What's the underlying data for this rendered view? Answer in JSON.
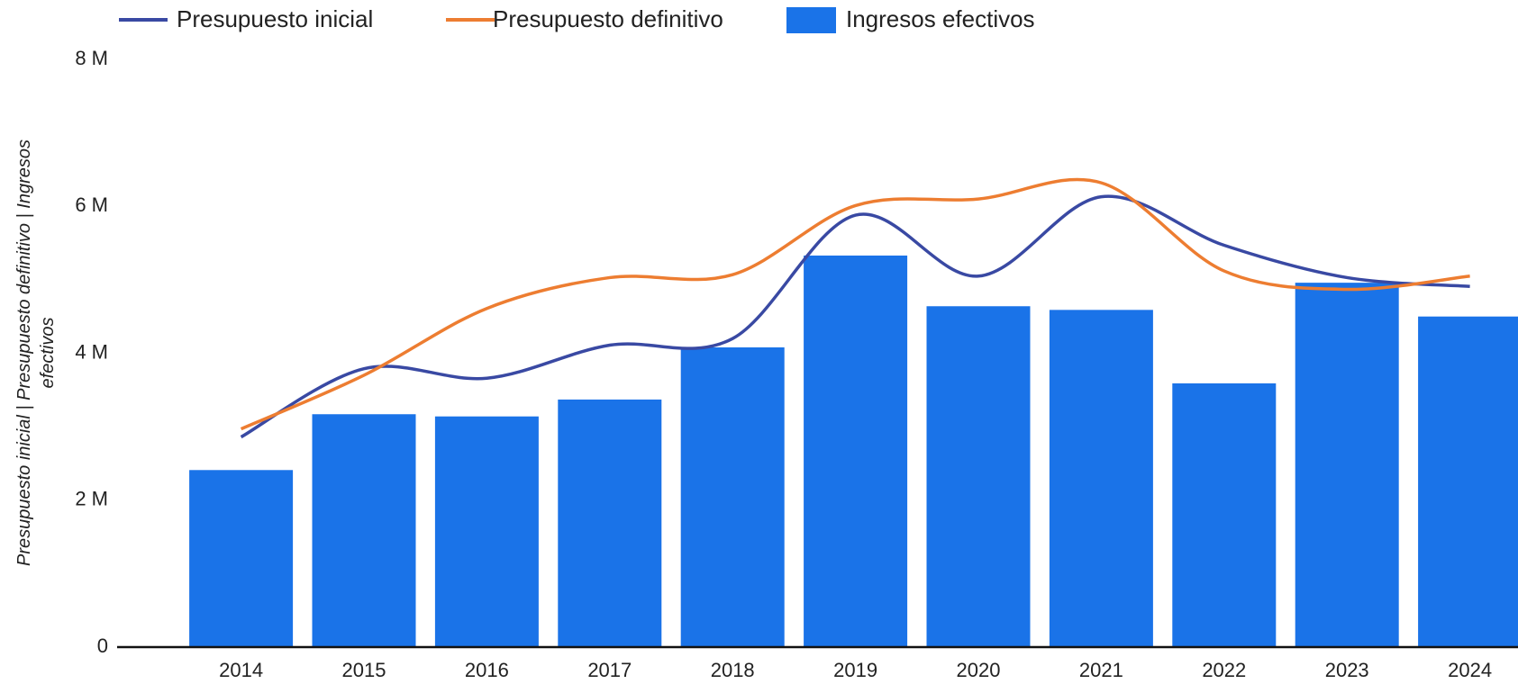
{
  "chart_data": {
    "type": "bar-line",
    "y_label": "Presupuesto inicial | Presupuesto definitivo | Ingresos efectivos",
    "categories": [
      "2014",
      "2015",
      "2016",
      "2017",
      "2018",
      "2019",
      "2020",
      "2021",
      "2022",
      "2023",
      "2024"
    ],
    "series": [
      {
        "name": "Presupuesto inicial",
        "type": "line",
        "color": "#3949a3",
        "values": [
          2860000,
          3790000,
          3660000,
          4110000,
          4200000,
          5880000,
          5050000,
          6130000,
          5470000,
          5030000,
          4910000
        ]
      },
      {
        "name": "Presupuesto definitivo",
        "type": "line",
        "color": "#ed7d31",
        "values": [
          2970000,
          3700000,
          4610000,
          5030000,
          5070000,
          6010000,
          6100000,
          6320000,
          5120000,
          4870000,
          5050000
        ]
      },
      {
        "name": "Ingresos efectivos",
        "type": "bar",
        "color": "#1a73e8",
        "values": [
          2410000,
          3170000,
          3140000,
          3370000,
          4080000,
          5330000,
          4640000,
          4590000,
          3590000,
          4960000,
          4500000
        ]
      }
    ],
    "ylim": [
      0,
      8000000
    ],
    "yticks": [
      0,
      {
        "value": 2000000,
        "label": "2 M"
      },
      {
        "value": 4000000,
        "label": "4 M"
      },
      {
        "value": 6000000,
        "label": "6 M"
      },
      {
        "value": 8000000,
        "label": "8 M"
      }
    ]
  }
}
